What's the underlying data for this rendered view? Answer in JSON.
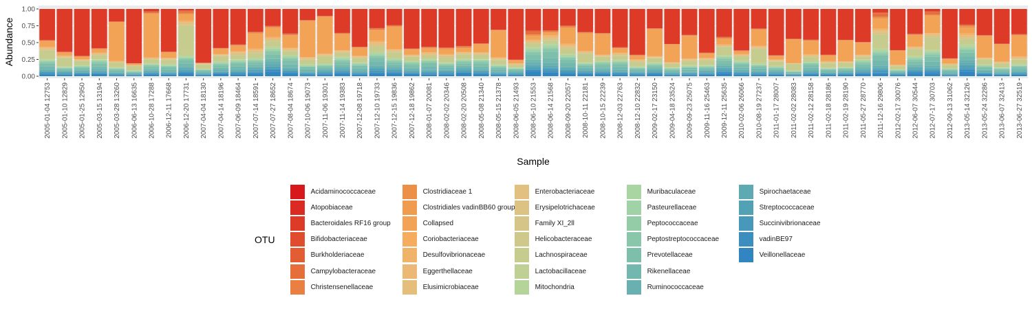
{
  "chart_data": {
    "type": "bar",
    "stacked": true,
    "title": "",
    "xlabel": "Sample",
    "ylabel": "Abundance",
    "ylim": [
      0,
      1
    ],
    "yticks": [
      "0.00",
      "0.25",
      "0.50",
      "0.75",
      "1.00"
    ],
    "legend_title": "OTU",
    "legend_position": "bottom",
    "categories": [
      "2005-01-04 12753",
      "2005-01-10 12829",
      "2005-01-25 12950",
      "2005-03-15 13194",
      "2005-03-28 13260",
      "2006-06-13 16635",
      "2006-10-28 17288",
      "2006-12-11 17668",
      "2006-12-20 17731",
      "2007-04-04 18130",
      "2007-04-14 18196",
      "2007-06-09 18464",
      "2007-07-14 18591",
      "2007-07-27 18652",
      "2007-08-04 18674",
      "2007-10-06 19073",
      "2007-11-06 19301",
      "2007-11-14 19383",
      "2007-12-08 19718",
      "2007-12-10 19733",
      "2007-12-15 19836",
      "2007-12-18 19862",
      "2008-01-07 20081",
      "2008-02-02 20346",
      "2008-02-20 20508",
      "2008-05-08 21340",
      "2008-05-15 21378",
      "2008-06-05 21493",
      "2008-06-10 21553",
      "2008-06-14 21568",
      "2008-09-20 22057",
      "2008-10-11 22181",
      "2008-10-15 22239",
      "2008-12-03 22763",
      "2008-12-10 22832",
      "2009-02-17 23150",
      "2009-04-18 23524",
      "2009-09-23 25075",
      "2009-11-16 25463",
      "2009-12-11 25635",
      "2010-02-06 26066",
      "2010-08-19 27237",
      "2011-01-17 28007",
      "2011-02-02 28083",
      "2011-02-12 28158",
      "2011-02-18 28186",
      "2011-02-19 28190",
      "2011-05-27 28770",
      "2011-12-16 29806",
      "2012-02-17 30076",
      "2012-06-07 30544",
      "2012-07-17 30703",
      "2012-09-13 31062",
      "2013-05-14 32126",
      "2013-05-24 32286",
      "2013-06-07 32413",
      "2013-06-27 32519"
    ],
    "series_names": [
      "Acidaminococcaceae",
      "Atopobiaceae",
      "Bacteroidales RF16 group",
      "Bifidobacteriaceae",
      "Burkholderiaceae",
      "Campylobacteraceae",
      "Christensenellaceae",
      "Clostridiaceae 1",
      "Clostridiales vadinBB60 group",
      "Collapsed",
      "Coriobacteriaceae",
      "Desulfovibrionaceae",
      "Eggerthellaceae",
      "Elusimicrobiaceae",
      "Enterobacteriaceae",
      "Erysipelotrichaceae",
      "Family XI_2ll",
      "Helicobacteraceae",
      "Lachnospiraceae",
      "Lactobacillaceae",
      "Mitochondria",
      "Muribaculaceae",
      "Pasteurellaceae",
      "Peptococcaceae",
      "Peptostreptococcaceae",
      "Prevotellaceae",
      "Rikenellaceae",
      "Ruminococcaceae",
      "Spirochaetaceae",
      "Streptococcaceae",
      "Succinivibrionaceae",
      "vadinBE97",
      "Veillonellaceae"
    ],
    "colors": [
      "#D7191C",
      "#DA2A22",
      "#DD3B28",
      "#E04C2E",
      "#E35D34",
      "#E66E3A",
      "#E97F40",
      "#EC8F47",
      "#EF9C4E",
      "#F2A356",
      "#F5AC5E",
      "#F0B36A",
      "#EBB975",
      "#E6BE7C",
      "#E2C080",
      "#DCC283",
      "#D5C586",
      "#CEC88A",
      "#C6CC8E",
      "#BED093",
      "#B5D49A",
      "#A8D5A2",
      "#9FD2A6",
      "#94CCA8",
      "#89C6AA",
      "#7EBFAC",
      "#73B8AE",
      "#68B1B0",
      "#5DAAB2",
      "#52A2B6",
      "#4798BA",
      "#3C8EBE",
      "#3186C2"
    ],
    "fixed_series": {
      "Bacteroidales RF16 group": [
        0.45,
        0.62,
        0.71,
        0.6,
        0.18,
        0.8,
        0.04,
        0.64,
        0.02,
        0.8,
        0.6,
        0.52,
        0.32,
        0.26,
        0.38,
        0.16,
        0.1,
        0.37,
        0.57,
        0.26,
        0.24,
        0.61,
        0.56,
        0.55,
        0.56,
        0.53,
        0.3,
        0.74,
        0.34,
        0.33,
        0.23,
        0.34,
        0.37,
        0.57,
        0.66,
        0.29,
        0.53,
        0.38,
        0.63,
        0.43,
        0.63,
        0.28,
        0.68,
        0.45,
        0.46,
        0.66,
        0.46,
        0.51,
        0.05,
        0.6,
        0.38,
        0.04,
        0.72,
        0.22,
        0.4,
        0.52,
        0.36
      ],
      "Campylobacteraceae": [
        0,
        0,
        0,
        0,
        0,
        0,
        0.02,
        0,
        0.02,
        0,
        0,
        0,
        0,
        0,
        0.01,
        0,
        0,
        0,
        0,
        0,
        0,
        0,
        0,
        0,
        0.01,
        0,
        0,
        0,
        0.05,
        0,
        0,
        0,
        0,
        0,
        0,
        0,
        0,
        0,
        0,
        0.01,
        0,
        0,
        0,
        0,
        0,
        0,
        0,
        0,
        0.05,
        0,
        0,
        0.04,
        0,
        0,
        0,
        0,
        0
      ],
      "Collapsed": [
        0.08,
        0.04,
        0.04,
        0.05,
        0.56,
        0.02,
        0.67,
        0.08,
        0.09,
        0,
        0.08,
        0.08,
        0.21,
        0.14,
        0.19,
        0.52,
        0.53,
        0.25,
        0.12,
        0.14,
        0.33,
        0.08,
        0.06,
        0.07,
        0.06,
        0.12,
        0.39,
        0.04,
        0.06,
        0.04,
        0.22,
        0.26,
        0.32,
        0.06,
        0.05,
        0.4,
        0.27,
        0.33,
        0.06,
        0.08,
        0.04,
        0.23,
        0.05,
        0.36,
        0.2,
        0.08,
        0.31,
        0.18,
        0.15,
        0.2,
        0.17,
        0.27,
        0.06,
        0.08,
        0.33,
        0.26,
        0.3
      ],
      "Lachnospiraceae": [
        0.12,
        0.12,
        0.06,
        0.06,
        0.06,
        0.06,
        0.06,
        0.06,
        0.4,
        0.06,
        0.08,
        0.06,
        0.06,
        0.08,
        0.06,
        0.06,
        0.1,
        0.06,
        0.06,
        0.06,
        0.08,
        0.06,
        0.04,
        0.06,
        0.06,
        0.06,
        0.06,
        0.03,
        0.05,
        0.04,
        0.06,
        0.12,
        0.06,
        0.06,
        0.06,
        0.06,
        0.06,
        0.06,
        0.06,
        0.12,
        0.06,
        0.2,
        0.06,
        0.1,
        0.06,
        0.06,
        0.06,
        0.04,
        0.2,
        0.04,
        0.1,
        0.2,
        0.04,
        0.06,
        0.08,
        0.06,
        0.06
      ]
    },
    "rest_sums": [
      0.35,
      0.22,
      0.19,
      0.29,
      0.2,
      0.12,
      0.21,
      0.22,
      0.47,
      0.14,
      0.24,
      0.34,
      0.41,
      0.52,
      0.36,
      0.26,
      0.27,
      0.32,
      0.25,
      0.54,
      0.35,
      0.25,
      0.34,
      0.32,
      0.31,
      0.29,
      0.25,
      0.19,
      0.5,
      0.59,
      0.49,
      0.28,
      0.25,
      0.31,
      0.23,
      0.25,
      0.14,
      0.23,
      0.25,
      0.36,
      0.27,
      0.29,
      0.21,
      0.09,
      0.28,
      0.2,
      0.17,
      0.27,
      0.55,
      0.16,
      0.35,
      0.45,
      0.18,
      0.64,
      0.19,
      0.16,
      0.28
    ],
    "rest_profile": {
      "Bifidobacteriaceae": 0.01,
      "Burkholderiaceae": 0.01,
      "Christensenellaceae": 0.02,
      "Clostridiaceae 1": 0.02,
      "Coriobacteriaceae": 0.02,
      "Desulfovibrionaceae": 0.02,
      "Eggerthellaceae": 0.02,
      "Enterobacteriaceae": 0.03,
      "Erysipelotrichaceae": 0.03,
      "Helicobacteraceae": 0.02,
      "Lactobacillaceae": 0.03,
      "Mitochondria": 0.02,
      "Muribaculaceae": 0.03,
      "Pasteurellaceae": 0.03,
      "Peptococcaceae": 0.03,
      "Peptostreptococcaceae": 0.06,
      "Prevotellaceae": 0.12,
      "Rikenellaceae": 0.1,
      "Ruminococcaceae": 0.06,
      "Spirochaetaceae": 0.05,
      "Streptococcaceae": 0.05,
      "Succinivibrionaceae": 0.04,
      "vadinBE97": 0.04,
      "Veillonellaceae": 0.1
    }
  }
}
